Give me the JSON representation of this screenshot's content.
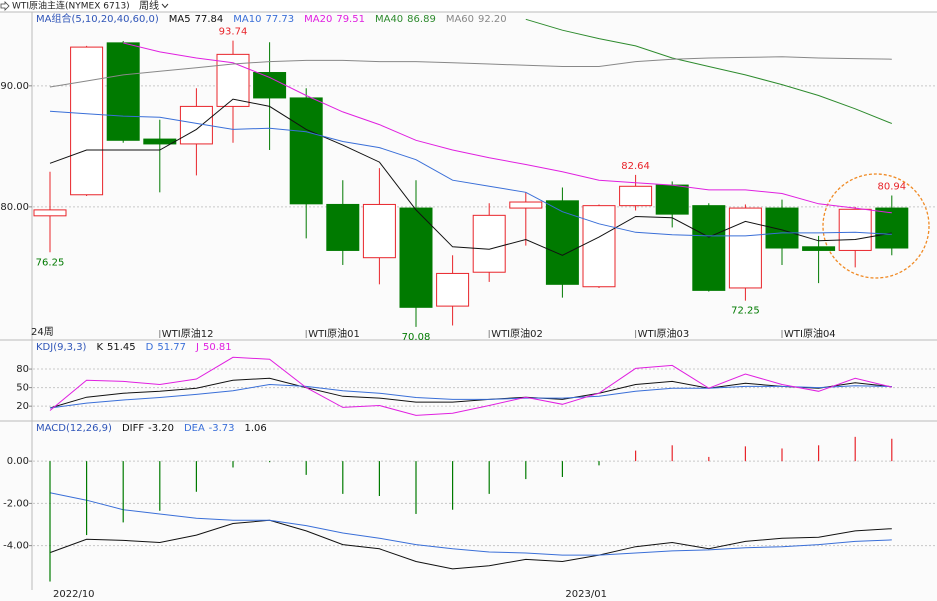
{
  "chart_data": [
    {
      "type": "candlestick",
      "title": "WTI原油主连(NYMEX 6713)",
      "period": "周线",
      "legend_title": "MA组合(5,10,20,40,60,0)",
      "corner_label": "24周",
      "categories": [
        null,
        null,
        null,
        "WTI原油12",
        null,
        null,
        null,
        "WTI原油01",
        null,
        null,
        null,
        null,
        "WTI原油02",
        null,
        null,
        null,
        "WTI原油03",
        null,
        null,
        null,
        "WTI原油04",
        null,
        null,
        null
      ],
      "open": [
        79.26,
        81.0,
        93.55,
        85.6,
        85.2,
        88.3,
        91.1,
        89.0,
        80.2,
        75.8,
        79.9,
        71.8,
        74.6,
        79.9,
        80.5,
        73.4,
        80.1,
        81.8,
        80.1,
        73.3,
        79.9,
        76.7,
        76.4,
        79.9
      ],
      "high": [
        82.9,
        93.3,
        93.7,
        87.2,
        89.8,
        93.74,
        93.6,
        89.8,
        82.2,
        83.2,
        82.2,
        76.0,
        80.3,
        81.2,
        81.6,
        80.2,
        82.64,
        82.1,
        80.3,
        80.2,
        80.6,
        77.6,
        80.0,
        80.94
      ],
      "low": [
        76.25,
        80.9,
        85.3,
        81.2,
        82.6,
        85.3,
        84.7,
        77.4,
        75.2,
        73.6,
        70.08,
        70.2,
        73.8,
        76.8,
        72.5,
        73.3,
        79.7,
        78.3,
        73.0,
        72.25,
        75.2,
        73.7,
        75.0,
        76.0
      ],
      "close": [
        79.75,
        93.2,
        85.5,
        85.2,
        88.3,
        92.6,
        89.0,
        80.25,
        76.4,
        80.2,
        71.7,
        74.5,
        79.3,
        80.4,
        73.6,
        80.1,
        81.7,
        79.4,
        73.1,
        79.9,
        76.6,
        76.4,
        79.8,
        76.6
      ],
      "up_color": "#e8242a",
      "down_color": "#007a00",
      "marked_extremes": [
        {
          "candle": 0,
          "field": "low"
        },
        {
          "candle": 5,
          "field": "high"
        },
        {
          "candle": 10,
          "field": "low"
        },
        {
          "candle": 16,
          "field": "high"
        },
        {
          "candle": 19,
          "field": "low"
        },
        {
          "candle": 23,
          "field": "high"
        }
      ],
      "series": [
        {
          "name": "MA5",
          "current_label": "77.84",
          "color": "#111111",
          "values": [
            83.6,
            84.7,
            84.7,
            84.7,
            86.4,
            88.9,
            88.3,
            86.4,
            85.1,
            83.7,
            79.75,
            76.7,
            76.5,
            77.3,
            76.0,
            77.5,
            79.2,
            79.1,
            77.5,
            78.8,
            78.1,
            77.2,
            77.3,
            77.84
          ]
        },
        {
          "name": "MA10",
          "current_label": "77.73",
          "color": "#3a6fd8",
          "values": [
            87.9,
            87.7,
            87.5,
            87.4,
            86.9,
            86.4,
            86.5,
            86.2,
            85.4,
            84.9,
            83.9,
            82.2,
            81.7,
            81.2,
            79.6,
            78.6,
            77.9,
            77.7,
            77.6,
            77.6,
            77.85,
            77.85,
            77.9,
            77.73
          ]
        },
        {
          "name": "MA20",
          "current_label": "79.51",
          "color": "#e020e0",
          "values": [
            null,
            null,
            93.55,
            92.8,
            92.3,
            91.9,
            90.7,
            89.2,
            87.85,
            86.8,
            85.5,
            84.7,
            84.05,
            83.5,
            82.9,
            82.2,
            82.0,
            81.8,
            81.4,
            81.4,
            81.1,
            80.25,
            79.9,
            79.51
          ]
        },
        {
          "name": "MA40",
          "current_label": "86.89",
          "color": "#2e8b2e",
          "values": [
            null,
            null,
            null,
            null,
            null,
            null,
            null,
            null,
            null,
            null,
            null,
            null,
            null,
            95.5,
            94.6,
            93.9,
            93.3,
            92.3,
            91.6,
            90.9,
            90.1,
            89.2,
            88.1,
            86.89
          ]
        },
        {
          "name": "MA60",
          "current_label": "92.20",
          "color": "#888888",
          "values": [
            89.9,
            90.4,
            90.9,
            91.2,
            91.5,
            91.8,
            92.0,
            92.1,
            92.1,
            92.0,
            92.0,
            91.9,
            91.8,
            91.7,
            91.6,
            91.6,
            92.0,
            92.2,
            92.3,
            92.35,
            92.4,
            92.3,
            92.25,
            92.2
          ]
        }
      ],
      "ylim": [
        69,
        96.1
      ],
      "yticks": [
        {
          "value": 80,
          "label": "80.00"
        },
        {
          "value": 90,
          "label": "90.00"
        }
      ],
      "grid": true
    },
    {
      "type": "line",
      "legend_title": "KDJ(9,3,3)",
      "series": [
        {
          "name": "K",
          "current_label": "51.45",
          "color": "#111111",
          "values": [
            17,
            34.5,
            41,
            44,
            49,
            62,
            65,
            50,
            36,
            33,
            26.5,
            26.5,
            31,
            34.5,
            31,
            41,
            55,
            60,
            49,
            57,
            52,
            49,
            58,
            51.45
          ]
        },
        {
          "name": "D",
          "current_label": "51.77",
          "color": "#3a6fd8",
          "values": [
            17,
            25,
            30,
            34,
            39,
            45,
            55,
            52,
            45,
            41,
            34,
            31,
            31,
            33,
            33,
            36,
            44,
            49,
            49,
            52,
            52,
            50,
            53,
            51.77
          ]
        },
        {
          "name": "J",
          "current_label": "50.81",
          "color": "#e020e0",
          "values": [
            13,
            62,
            60,
            55,
            64,
            99,
            96,
            50,
            18,
            21,
            5,
            8.5,
            21,
            34.5,
            23,
            41,
            81,
            86,
            49,
            72,
            55,
            44,
            65,
            50.81
          ]
        }
      ],
      "ylim": [
        -4,
        127
      ],
      "yticks": [
        20,
        50,
        80
      ],
      "grid": true
    },
    {
      "type": "macd",
      "legend_title": "MACD(12,26,9)",
      "categories": [
        "2022/10",
        null,
        null,
        null,
        null,
        null,
        null,
        null,
        null,
        null,
        null,
        null,
        null,
        null,
        "2023/01",
        null,
        null,
        null,
        null,
        null,
        null,
        null,
        null,
        null
      ],
      "series": [
        {
          "name": "DIFF",
          "current_label": "-3.20",
          "color": "#111111",
          "style": "line",
          "values": [
            -4.33,
            -3.7,
            -3.75,
            -3.85,
            -3.5,
            -2.95,
            -2.8,
            -3.3,
            -3.95,
            -4.15,
            -4.75,
            -5.1,
            -4.95,
            -4.65,
            -4.75,
            -4.45,
            -4.05,
            -3.85,
            -4.15,
            -3.8,
            -3.65,
            -3.6,
            -3.3,
            -3.2
          ]
        },
        {
          "name": "DEA",
          "current_label": "-3.73",
          "color": "#3a6fd8",
          "style": "line",
          "values": [
            -1.5,
            -1.85,
            -2.3,
            -2.5,
            -2.7,
            -2.8,
            -2.8,
            -3.05,
            -3.4,
            -3.65,
            -3.95,
            -4.15,
            -4.3,
            -4.35,
            -4.45,
            -4.45,
            -4.35,
            -4.25,
            -4.2,
            -4.1,
            -4.05,
            -3.95,
            -3.8,
            -3.73
          ]
        },
        {
          "current_label": "1.06",
          "color": "#111111",
          "up_color": "#e8242a",
          "down_color": "#007a00",
          "style": "bars",
          "values": [
            -5.7,
            -3.5,
            -2.9,
            -2.35,
            -1.45,
            -0.3,
            -0.05,
            -0.65,
            -1.55,
            -1.65,
            -2.5,
            -2.3,
            -1.55,
            -0.85,
            -0.75,
            -0.2,
            0.5,
            0.75,
            0.2,
            0.7,
            0.6,
            0.75,
            1.15,
            1.06
          ]
        }
      ],
      "ylim": [
        -6.1,
        1.9
      ],
      "yticks": [
        {
          "value": 0,
          "label": "0.00"
        },
        {
          "value": -2,
          "label": "-2.00"
        },
        {
          "value": -4,
          "label": "-4.00"
        }
      ],
      "grid": true
    }
  ]
}
